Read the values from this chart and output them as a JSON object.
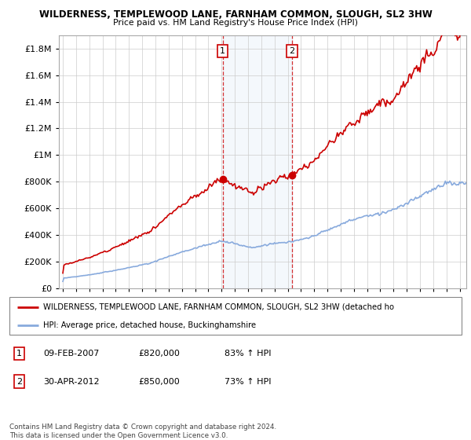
{
  "title": "WILDERNESS, TEMPLEWOOD LANE, FARNHAM COMMON, SLOUGH, SL2 3HW",
  "subtitle": "Price paid vs. HM Land Registry's House Price Index (HPI)",
  "ylim": [
    0,
    1900000
  ],
  "yticks": [
    0,
    200000,
    400000,
    600000,
    800000,
    1000000,
    1200000,
    1400000,
    1600000,
    1800000
  ],
  "sale1_x": 2007.08,
  "sale1_y": 820000,
  "sale2_x": 2012.33,
  "sale2_y": 850000,
  "property_color": "#cc0000",
  "hpi_color": "#88aadd",
  "grid_color": "#cccccc",
  "legend_property": "WILDERNESS, TEMPLEWOOD LANE, FARNHAM COMMON, SLOUGH, SL2 3HW (detached ho",
  "legend_hpi": "HPI: Average price, detached house, Buckinghamshire",
  "footer": "Contains HM Land Registry data © Crown copyright and database right 2024.\nThis data is licensed under the Open Government Licence v3.0.",
  "table_rows": [
    {
      "num": "1",
      "date": "09-FEB-2007",
      "price": "£820,000",
      "hpi": "83% ↑ HPI"
    },
    {
      "num": "2",
      "date": "30-APR-2012",
      "price": "£850,000",
      "hpi": "73% ↑ HPI"
    }
  ],
  "xlim_left": 1994.7,
  "xlim_right": 2025.5
}
